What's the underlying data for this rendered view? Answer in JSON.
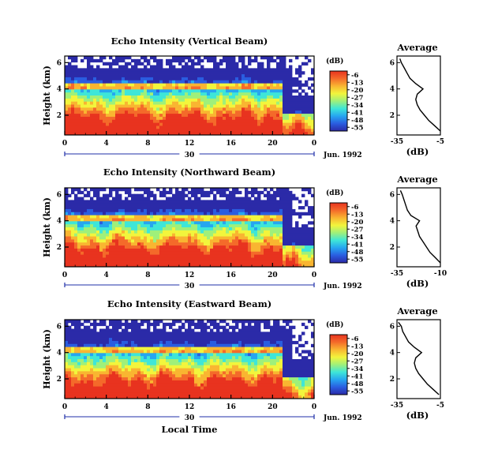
{
  "figure": {
    "xlabel": "Local Time",
    "date_label": "Jun. 1992",
    "day_label": "30",
    "colorbar_unit": "(dB)",
    "colorbar_ticks": [
      "-6",
      "-13",
      "-20",
      "-27",
      "-34",
      "-41",
      "-48",
      "-55"
    ],
    "colorbar_colors": [
      "#2b2aa8",
      "#2a5de0",
      "#26a6f0",
      "#3ee6d8",
      "#9ff07a",
      "#f2f53c",
      "#f9b531",
      "#f46a2a",
      "#e8331f"
    ],
    "avg_title": "Average",
    "avg_xlabel": "(dB)",
    "ylabel": "Height (km)"
  },
  "chart_data": [
    {
      "type": "heatmap",
      "title": "Echo Intensity (Vertical Beam)",
      "xlabel": "Local Time",
      "ylabel": "Height (km)",
      "x_ticks": [
        "0",
        "4",
        "8",
        "12",
        "16",
        "20",
        "0"
      ],
      "y_ticks": [
        "2",
        "4",
        "6"
      ],
      "xlim": [
        0,
        24
      ],
      "ylim": [
        0.5,
        6.5
      ],
      "z_range": [
        -55,
        -6
      ],
      "z_unit": "dB",
      "x_day_label": "30",
      "date": "Jun. 1992",
      "profile": {
        "title": "Average",
        "xlabel": "(dB)",
        "x_ticks": [
          "-35",
          "-5"
        ],
        "xlim": [
          -35,
          -5
        ],
        "ylim": [
          0.5,
          6.5
        ],
        "y_ticks": [
          "2",
          "4",
          "6"
        ],
        "height_km": [
          0.8,
          1.2,
          1.6,
          2.0,
          2.4,
          2.8,
          3.2,
          3.6,
          4.0,
          4.4,
          4.8,
          5.2,
          5.6,
          6.0,
          6.3
        ],
        "db": [
          -5,
          -9,
          -13,
          -16,
          -19,
          -21,
          -22,
          -21,
          -17,
          -22,
          -26,
          -28,
          -30,
          -32,
          -33
        ]
      }
    },
    {
      "type": "heatmap",
      "title": "Echo Intensity (Northward Beam)",
      "xlabel": "Local Time",
      "ylabel": "Height (km)",
      "x_ticks": [
        "0",
        "4",
        "8",
        "12",
        "16",
        "20",
        "0"
      ],
      "y_ticks": [
        "2",
        "4",
        "6"
      ],
      "xlim": [
        0,
        24
      ],
      "ylim": [
        0.5,
        6.5
      ],
      "z_range": [
        -55,
        -6
      ],
      "z_unit": "dB",
      "x_day_label": "30",
      "date": "Jun. 1992",
      "profile": {
        "title": "Average",
        "xlabel": "(dB)",
        "x_ticks": [
          "-35",
          "-10"
        ],
        "xlim": [
          -35,
          -10
        ],
        "ylim": [
          0.5,
          6.5
        ],
        "y_ticks": [
          "2",
          "4",
          "6"
        ],
        "height_km": [
          0.8,
          1.2,
          1.6,
          2.0,
          2.4,
          2.8,
          3.2,
          3.6,
          4.0,
          4.4,
          4.8,
          5.2,
          5.6,
          6.0,
          6.3
        ],
        "db": [
          -10,
          -13,
          -16,
          -18,
          -20,
          -22,
          -23,
          -24,
          -22,
          -27,
          -29,
          -30,
          -31,
          -32,
          -33
        ]
      }
    },
    {
      "type": "heatmap",
      "title": "Echo Intensity (Eastward Beam)",
      "xlabel": "Local Time",
      "ylabel": "Height (km)",
      "x_ticks": [
        "0",
        "4",
        "8",
        "12",
        "16",
        "20",
        "0"
      ],
      "y_ticks": [
        "2",
        "4",
        "6"
      ],
      "xlim": [
        0,
        24
      ],
      "ylim": [
        0.5,
        6.5
      ],
      "z_range": [
        -55,
        -6
      ],
      "z_unit": "dB",
      "x_day_label": "30",
      "date": "Jun. 1992",
      "profile": {
        "title": "Average",
        "xlabel": "(dB)",
        "x_ticks": [
          "-35",
          "-5"
        ],
        "xlim": [
          -35,
          -5
        ],
        "ylim": [
          0.5,
          6.5
        ],
        "y_ticks": [
          "2",
          "4",
          "6"
        ],
        "height_km": [
          0.8,
          1.2,
          1.6,
          2.0,
          2.4,
          2.8,
          3.2,
          3.6,
          4.0,
          4.4,
          4.8,
          5.2,
          5.6,
          6.0,
          6.3
        ],
        "db": [
          -6,
          -10,
          -14,
          -17,
          -20,
          -22,
          -23,
          -22,
          -18,
          -23,
          -27,
          -29,
          -31,
          -32,
          -34
        ]
      }
    }
  ]
}
